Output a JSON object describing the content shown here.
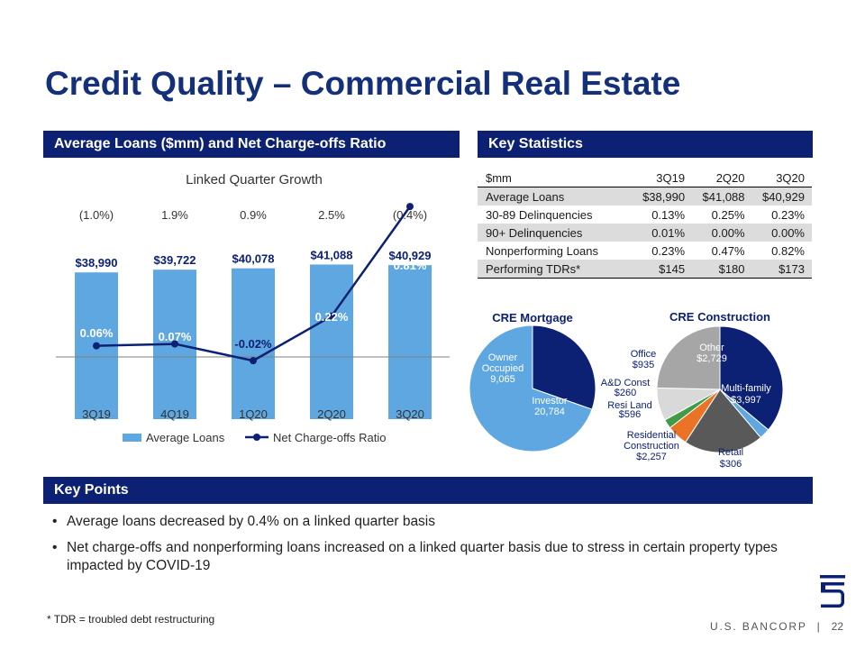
{
  "title": "Credit Quality – Commercial Real Estate",
  "sections": {
    "left": "Average Loans ($mm) and Net Charge-offs Ratio",
    "right": "Key Statistics",
    "points": "Key Points"
  },
  "chart_data": [
    {
      "type": "bar",
      "title": "Linked Quarter Growth",
      "categories": [
        "3Q19",
        "4Q19",
        "1Q20",
        "2Q20",
        "3Q20"
      ],
      "growth_labels": [
        "(1.0%)",
        "1.9%",
        "0.9%",
        "2.5%",
        "(0.4%)"
      ],
      "series": [
        {
          "name": "Average Loans",
          "type": "bar",
          "color": "#5fa7e0",
          "values": [
            38990,
            39722,
            40078,
            41088,
            40929
          ],
          "labels": [
            "$38,990",
            "$39,722",
            "$40,078",
            "$41,088",
            "$40,929"
          ]
        },
        {
          "name": "Net Charge-offs Ratio",
          "type": "line",
          "color": "#0c2174",
          "values": [
            0.06,
            0.07,
            -0.02,
            0.22,
            0.81
          ],
          "labels": [
            "0.06%",
            "0.07%",
            "-0.02%",
            "0.22%",
            "0.81%"
          ]
        }
      ],
      "legend": "bottom"
    },
    {
      "type": "pie",
      "title": "CRE Mortgage",
      "slices": [
        {
          "name": "Owner Occupied",
          "value": 9065,
          "label": "9,065",
          "color": "#0c2174"
        },
        {
          "name": "Investor",
          "value": 20784,
          "label": "20,784",
          "color": "#5fa7e0"
        }
      ]
    },
    {
      "type": "pie",
      "title": "CRE Construction",
      "slices": [
        {
          "name": "Multi-family",
          "value": 3997,
          "label": "$3,997",
          "color": "#0c2174"
        },
        {
          "name": "Retail",
          "value": 306,
          "label": "$306",
          "color": "#5fa7e0"
        },
        {
          "name": "Residential Construction",
          "value": 2257,
          "label": "$2,257",
          "color": "#595959"
        },
        {
          "name": "Resi Land",
          "value": 596,
          "label": "$596",
          "color": "#ea7325"
        },
        {
          "name": "A&D Const",
          "value": 260,
          "label": "$260",
          "color": "#3f9b48"
        },
        {
          "name": "Office",
          "value": 935,
          "label": "$935",
          "color": "#d9d9d9"
        },
        {
          "name": "Other",
          "value": 2729,
          "label": "$2,729",
          "color": "#a6a6a6"
        }
      ]
    }
  ],
  "stats": {
    "header": [
      "$mm",
      "3Q19",
      "2Q20",
      "3Q20"
    ],
    "rows": [
      [
        "Average Loans",
        "$38,990",
        "$41,088",
        "$40,929"
      ],
      [
        "30-89 Delinquencies",
        "0.13%",
        "0.25%",
        "0.23%"
      ],
      [
        "90+ Delinquencies",
        "0.01%",
        "0.00%",
        "0.00%"
      ],
      [
        "Nonperforming Loans",
        "0.23%",
        "0.47%",
        "0.82%"
      ],
      [
        "Performing TDRs*",
        "$145",
        "$180",
        "$173"
      ]
    ]
  },
  "key_points": {
    "bullet_char": "•",
    "items": [
      "Average loans decreased by 0.4% on a linked quarter basis",
      "Net charge-offs and nonperforming loans increased on a linked quarter basis due to stress in certain property types impacted by COVID-19"
    ]
  },
  "footnote": "* TDR = troubled debt restructuring",
  "brand": "U.S. BANCORP",
  "separator": "|",
  "page_number": "22",
  "colors": {
    "navy": "#0c2174",
    "title": "#15307a",
    "light_blue": "#5fa7e0"
  },
  "logo_icon": "us-bancorp-shield-icon"
}
